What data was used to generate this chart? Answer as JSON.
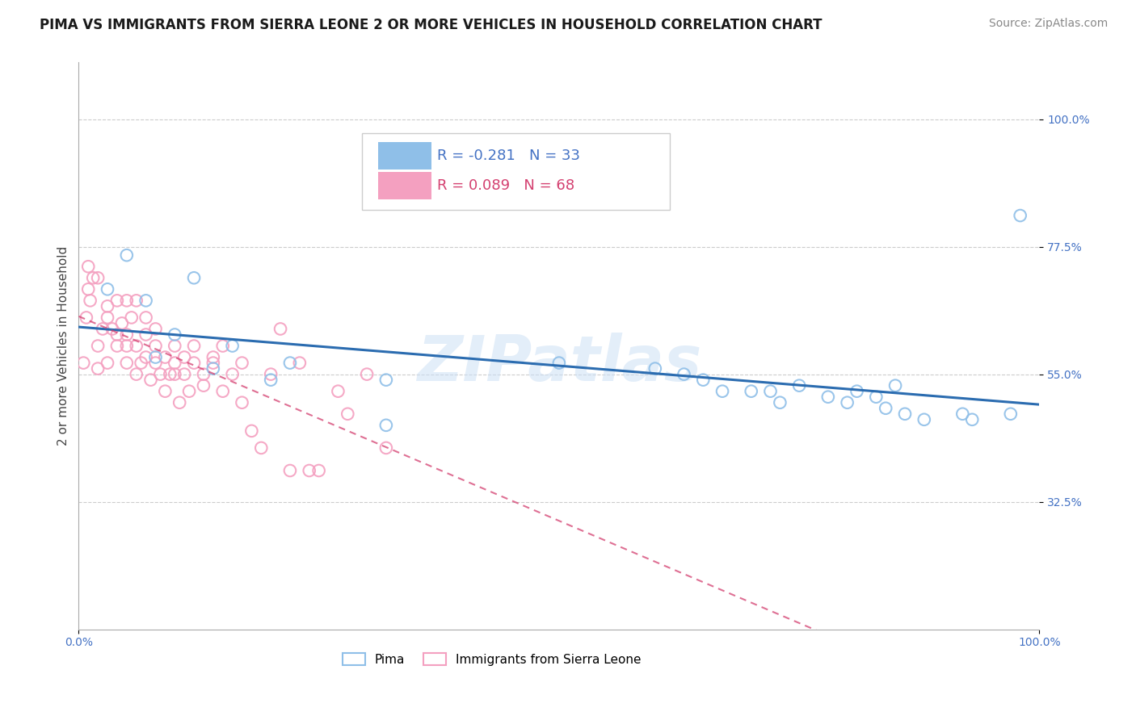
{
  "title": "PIMA VS IMMIGRANTS FROM SIERRA LEONE 2 OR MORE VEHICLES IN HOUSEHOLD CORRELATION CHART",
  "source": "Source: ZipAtlas.com",
  "ylabel": "2 or more Vehicles in Household",
  "xlim": [
    0.0,
    100.0
  ],
  "ylim": [
    10.0,
    110.0
  ],
  "ytick_labels": [
    "32.5%",
    "55.0%",
    "77.5%",
    "100.0%"
  ],
  "ytick_values": [
    32.5,
    55.0,
    77.5,
    100.0
  ],
  "xtick_labels": [
    "0.0%",
    "100.0%"
  ],
  "xtick_values": [
    0.0,
    100.0
  ],
  "grid_color": "#cccccc",
  "background_color": "#ffffff",
  "watermark": "ZIPatlas",
  "legend_R_blue": "R = -0.281",
  "legend_N_blue": "N = 33",
  "legend_R_pink": "R = 0.089",
  "legend_N_pink": "N = 68",
  "blue_color": "#8fbfe8",
  "pink_color": "#f4a0c0",
  "blue_line_color": "#2b6cb0",
  "pink_line_color": "#d44070",
  "pima_x": [
    3,
    5,
    7,
    8,
    10,
    12,
    14,
    16,
    20,
    22,
    32,
    32,
    50,
    60,
    63,
    65,
    67,
    70,
    72,
    73,
    75,
    78,
    80,
    81,
    83,
    84,
    85,
    86,
    88,
    92,
    93,
    97,
    98
  ],
  "pima_y": [
    70,
    76,
    68,
    58,
    62,
    72,
    56,
    60,
    54,
    57,
    54,
    46,
    57,
    56,
    55,
    54,
    52,
    52,
    52,
    50,
    53,
    51,
    50,
    52,
    51,
    49,
    53,
    48,
    47,
    48,
    47,
    48,
    83
  ],
  "sierra_x": [
    0.5,
    0.8,
    1.0,
    1.0,
    1.2,
    1.5,
    2.0,
    2.0,
    2.0,
    2.5,
    3.0,
    3.0,
    3.0,
    3.5,
    4.0,
    4.0,
    4.0,
    4.5,
    5.0,
    5.0,
    5.0,
    5.0,
    5.5,
    6.0,
    6.0,
    6.0,
    6.5,
    7.0,
    7.0,
    7.0,
    7.5,
    8.0,
    8.0,
    8.0,
    8.5,
    9.0,
    9.0,
    9.5,
    10.0,
    10.0,
    10.0,
    10.5,
    11.0,
    11.0,
    11.5,
    12.0,
    12.0,
    13.0,
    13.0,
    14.0,
    14.0,
    15.0,
    15.0,
    16.0,
    17.0,
    17.0,
    18.0,
    19.0,
    20.0,
    21.0,
    22.0,
    23.0,
    24.0,
    25.0,
    27.0,
    28.0,
    30.0,
    32.0
  ],
  "sierra_y": [
    57,
    65,
    70,
    74,
    68,
    72,
    60,
    56,
    72,
    63,
    57,
    67,
    65,
    63,
    60,
    68,
    62,
    64,
    57,
    62,
    68,
    60,
    65,
    55,
    60,
    68,
    57,
    62,
    58,
    65,
    54,
    60,
    57,
    63,
    55,
    58,
    52,
    55,
    57,
    60,
    55,
    50,
    55,
    58,
    52,
    57,
    60,
    53,
    55,
    57,
    58,
    52,
    60,
    55,
    57,
    50,
    45,
    42,
    55,
    63,
    38,
    57,
    38,
    38,
    52,
    48,
    55,
    42
  ],
  "title_fontsize": 12,
  "axis_label_fontsize": 11,
  "tick_fontsize": 10,
  "legend_fontsize": 12,
  "source_fontsize": 10
}
